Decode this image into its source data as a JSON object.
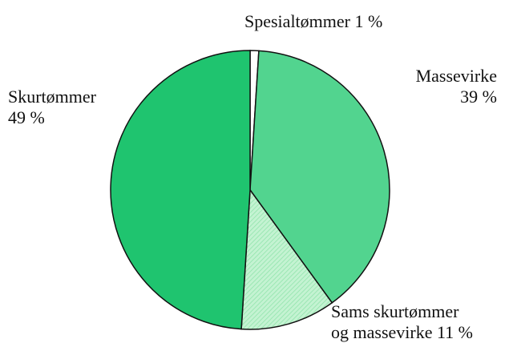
{
  "chart_data": {
    "type": "pie",
    "categories": [
      "Spesialtømmer",
      "Massevirke",
      "Sams skurtømmer\nog massevirke",
      "Skurtømmer"
    ],
    "values": [
      1,
      39,
      11,
      49
    ],
    "value_labels": [
      "1 %",
      "39 %",
      "11 %",
      "49 %"
    ],
    "colors": [
      "#ffffff",
      "#52d48f",
      "#c4f3d2",
      "#1fc46f"
    ]
  }
}
